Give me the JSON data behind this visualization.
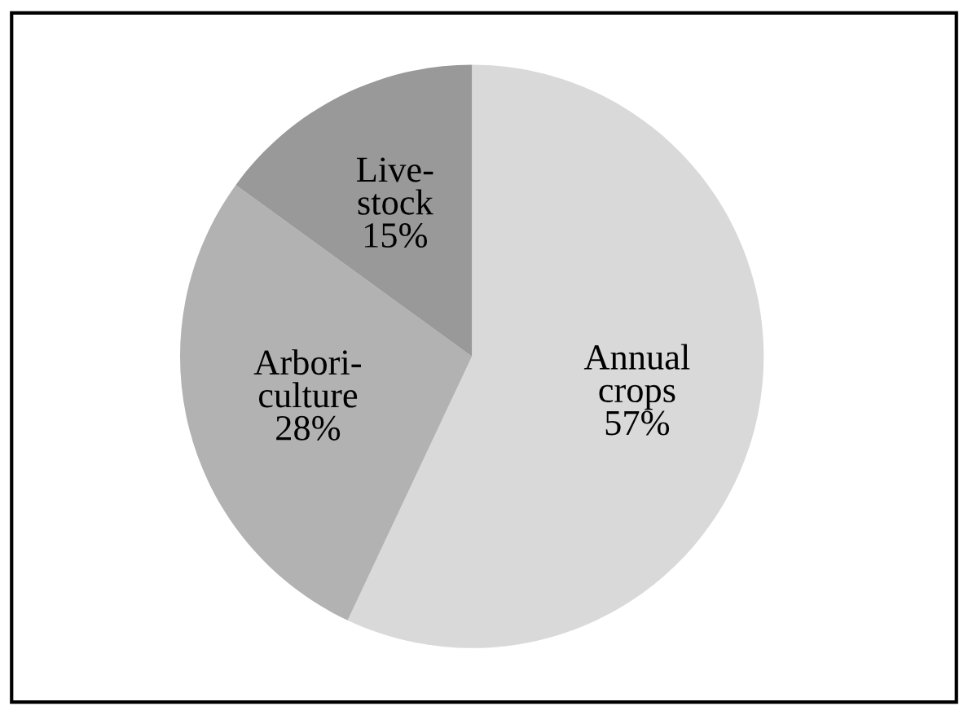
{
  "chart_data": {
    "type": "pie",
    "categories": [
      "Annual\ncrops",
      "Arbori-\nculture",
      "Live-\nstock"
    ],
    "values": [
      57,
      28,
      15
    ],
    "value_labels": [
      "57%",
      "28%",
      "15%"
    ],
    "colors": [
      "#d9d9d9",
      "#b2b2b2",
      "#999999"
    ]
  }
}
